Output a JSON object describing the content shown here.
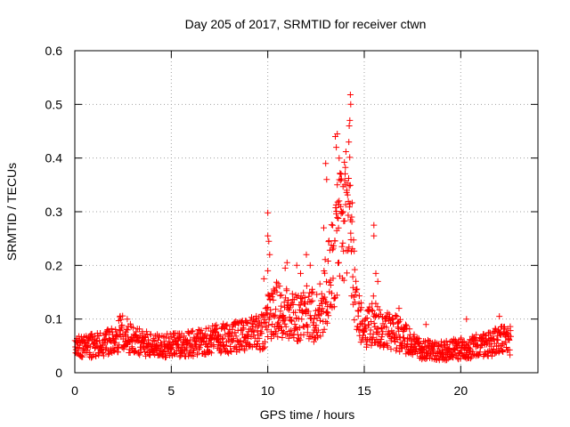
{
  "chart_data": {
    "type": "scatter",
    "title": "Day 205 of 2017, SRMTID for receiver ctwn",
    "xlabel": "GPS time / hours",
    "ylabel": "SRMTID / TECUs",
    "xlim": [
      0,
      24
    ],
    "ylim": [
      0,
      0.6
    ],
    "xticks": [
      0,
      5,
      10,
      15,
      20
    ],
    "xtick_labels": [
      "0",
      "5",
      "10",
      "15",
      "20"
    ],
    "yticks": [
      0,
      0.1,
      0.2,
      0.3,
      0.4,
      0.5,
      0.6
    ],
    "ytick_labels": [
      "0",
      "0.1",
      "0.2",
      "0.3",
      "0.4",
      "0.5",
      "0.6"
    ],
    "grid": true,
    "marker": "+",
    "color": "#ff0000",
    "series": [
      {
        "name": "SRMTID",
        "trend": [
          [
            0.0,
            0.05
          ],
          [
            1.0,
            0.05
          ],
          [
            2.0,
            0.06
          ],
          [
            2.5,
            0.08
          ],
          [
            3.0,
            0.06
          ],
          [
            4.0,
            0.05
          ],
          [
            5.0,
            0.05
          ],
          [
            6.0,
            0.055
          ],
          [
            7.0,
            0.06
          ],
          [
            8.0,
            0.065
          ],
          [
            9.0,
            0.07
          ],
          [
            9.8,
            0.08
          ],
          [
            10.0,
            0.1
          ],
          [
            10.5,
            0.12
          ],
          [
            11.0,
            0.11
          ],
          [
            11.5,
            0.1
          ],
          [
            12.0,
            0.12
          ],
          [
            12.5,
            0.1
          ],
          [
            13.0,
            0.15
          ],
          [
            13.5,
            0.22
          ],
          [
            14.0,
            0.3
          ],
          [
            14.3,
            0.28
          ],
          [
            14.6,
            0.12
          ],
          [
            15.0,
            0.07
          ],
          [
            15.5,
            0.1
          ],
          [
            16.0,
            0.08
          ],
          [
            17.0,
            0.07
          ],
          [
            17.5,
            0.05
          ],
          [
            18.0,
            0.045
          ],
          [
            19.0,
            0.04
          ],
          [
            20.0,
            0.045
          ],
          [
            21.0,
            0.05
          ],
          [
            22.0,
            0.06
          ],
          [
            22.6,
            0.06
          ]
        ],
        "outliers": [
          [
            10.0,
            0.298
          ],
          [
            10.0,
            0.255
          ],
          [
            10.05,
            0.245
          ],
          [
            10.1,
            0.22
          ],
          [
            10.0,
            0.19
          ],
          [
            9.8,
            0.175
          ],
          [
            11.0,
            0.205
          ],
          [
            10.9,
            0.195
          ],
          [
            11.5,
            0.2
          ],
          [
            11.7,
            0.185
          ],
          [
            12.0,
            0.22
          ],
          [
            12.2,
            0.2
          ],
          [
            12.9,
            0.27
          ],
          [
            13.0,
            0.39
          ],
          [
            13.05,
            0.36
          ],
          [
            13.5,
            0.44
          ],
          [
            13.6,
            0.445
          ],
          [
            13.55,
            0.42
          ],
          [
            13.7,
            0.4
          ],
          [
            13.8,
            0.37
          ],
          [
            13.6,
            0.35
          ],
          [
            13.7,
            0.32
          ],
          [
            13.9,
            0.3
          ],
          [
            14.0,
            0.35
          ],
          [
            14.1,
            0.34
          ],
          [
            14.2,
            0.43
          ],
          [
            14.25,
            0.47
          ],
          [
            14.28,
            0.518
          ],
          [
            14.3,
            0.5
          ],
          [
            14.22,
            0.46
          ],
          [
            14.35,
            0.29
          ],
          [
            14.3,
            0.26
          ],
          [
            15.5,
            0.275
          ],
          [
            15.5,
            0.255
          ],
          [
            15.6,
            0.185
          ],
          [
            15.7,
            0.17
          ],
          [
            16.8,
            0.12
          ],
          [
            18.2,
            0.09
          ],
          [
            20.3,
            0.1
          ],
          [
            22.0,
            0.105
          ]
        ]
      }
    ]
  }
}
